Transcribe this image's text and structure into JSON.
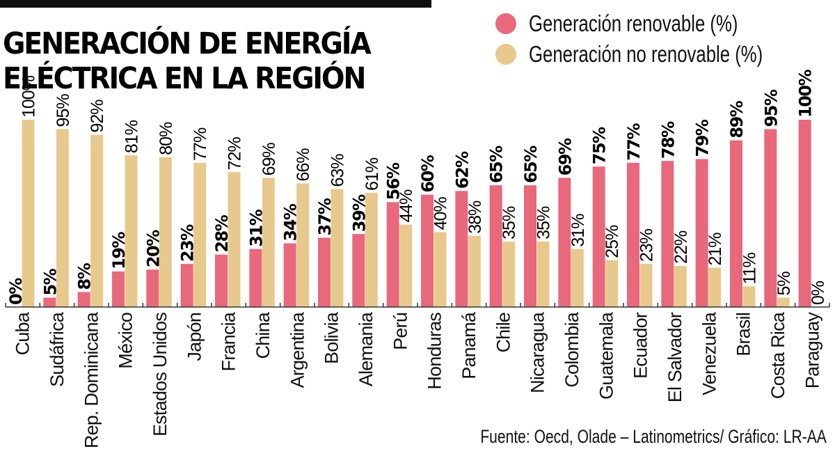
{
  "title_lines": [
    "GENERACIÓN DE ENERGÍA",
    "ELÉCTRICA EN LA REGIÓN"
  ],
  "legend": [
    {
      "label": "Generación renovable (%)",
      "color": "#e8687c"
    },
    {
      "label": "Generación no renovable (%)",
      "color": "#e8c98d"
    }
  ],
  "source": "Fuente:  Oecd, Olade – Latinometrics/ Gráfico: LR-AA",
  "chart_data": {
    "type": "bar",
    "title": "GENERACIÓN DE ENERGÍA ELÉCTRICA EN LA REGIÓN",
    "xlabel": "",
    "ylabel": "",
    "ylim": [
      0,
      100
    ],
    "grid": false,
    "legend_position": "top-right",
    "categories": [
      "Cuba",
      "Sudáfrica",
      "Rep. Dominicana",
      "México",
      "Estados Unidos",
      "Japón",
      "Francia",
      "China",
      "Argentina",
      "Bolivia",
      "Alemania",
      "Perú",
      "Honduras",
      "Panamá",
      "Chile",
      "Nicaragua",
      "Colombia",
      "Guatemala",
      "Ecuador",
      "El Salvador",
      "Venezuela",
      "Brasil",
      "Costa Rica",
      "Paraguay"
    ],
    "series": [
      {
        "name": "Generación renovable (%)",
        "color": "#e8687c",
        "values": [
          0,
          5,
          8,
          19,
          20,
          23,
          28,
          31,
          34,
          37,
          39,
          56,
          60,
          62,
          65,
          65,
          69,
          75,
          77,
          78,
          79,
          89,
          95,
          100
        ],
        "labels": [
          "0%",
          "5%",
          "8%",
          "19%",
          "20%",
          "23%",
          "28%",
          "31%",
          "34%",
          "37%",
          "39%",
          "56%",
          "60%",
          "62%",
          "65%",
          "65%",
          "69%",
          "75%",
          "77%",
          "78%",
          "79%",
          "89%",
          "95%",
          "100%"
        ]
      },
      {
        "name": "Generación no renovable (%)",
        "color": "#e8c98d",
        "values": [
          100,
          95,
          92,
          81,
          80,
          77,
          72,
          69,
          66,
          63,
          61,
          44,
          40,
          38,
          35,
          35,
          31,
          25,
          23,
          22,
          21,
          11,
          5,
          0
        ],
        "labels": [
          "100%",
          "95%",
          "92%",
          "81%",
          "80%",
          "77%",
          "72%",
          "69%",
          "66%",
          "63%",
          "61%",
          "44%",
          "40%",
          "38%",
          "35%",
          "35%",
          "31%",
          "25%",
          "23%",
          "22%",
          "21%",
          "11%",
          "5%",
          "0%"
        ]
      }
    ]
  }
}
